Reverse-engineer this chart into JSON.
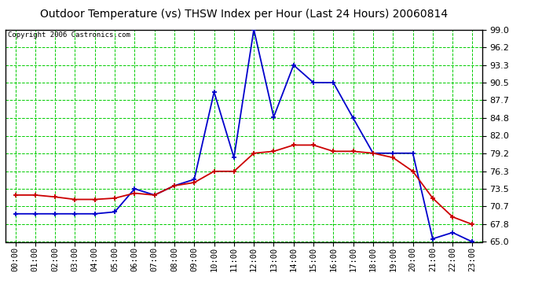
{
  "title": "Outdoor Temperature (vs) THSW Index per Hour (Last 24 Hours) 20060814",
  "copyright": "Copyright 2006 Castronics.com",
  "hours": [
    "00:00",
    "01:00",
    "02:00",
    "03:00",
    "04:00",
    "05:00",
    "06:00",
    "07:00",
    "08:00",
    "09:00",
    "10:00",
    "11:00",
    "12:00",
    "13:00",
    "14:00",
    "15:00",
    "16:00",
    "17:00",
    "18:00",
    "19:00",
    "20:00",
    "21:00",
    "22:00",
    "23:00"
  ],
  "temp_red": [
    72.5,
    72.5,
    72.2,
    71.8,
    71.8,
    72.0,
    72.8,
    72.5,
    74.0,
    74.5,
    76.3,
    76.3,
    79.2,
    79.5,
    80.5,
    80.5,
    79.5,
    79.5,
    79.2,
    78.5,
    76.3,
    72.0,
    69.0,
    67.8
  ],
  "thsw_blue": [
    69.5,
    69.5,
    69.5,
    69.5,
    69.5,
    69.8,
    73.5,
    72.5,
    74.0,
    75.0,
    89.0,
    78.5,
    99.0,
    85.0,
    93.3,
    90.5,
    90.5,
    84.8,
    79.2,
    79.2,
    79.2,
    65.5,
    66.5,
    65.0
  ],
  "ylim": [
    65.0,
    99.0
  ],
  "yticks": [
    65.0,
    67.8,
    70.7,
    73.5,
    76.3,
    79.2,
    82.0,
    84.8,
    87.7,
    90.5,
    93.3,
    96.2,
    99.0
  ],
  "background_color": "#ffffff",
  "plot_bg_color": "#ffffff",
  "grid_color": "#00cc00",
  "red_color": "#cc0000",
  "blue_color": "#0000cc",
  "title_fontsize": 10,
  "copyright_fontsize": 6.5,
  "border_color": "#000000"
}
